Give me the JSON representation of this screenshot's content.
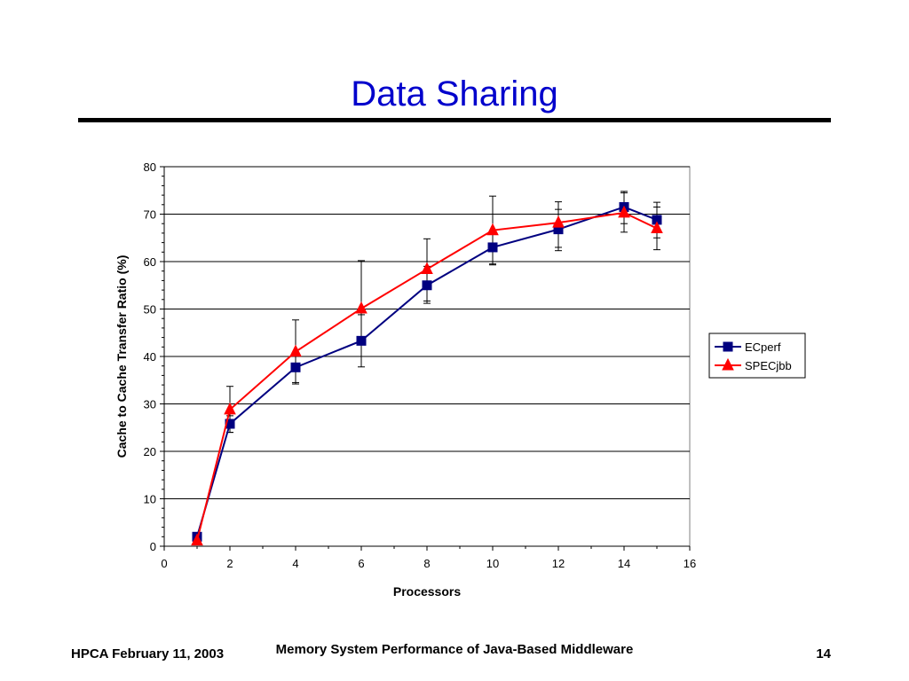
{
  "slide": {
    "title": "Data Sharing",
    "footer_left": "HPCA February 11, 2003",
    "footer_center": "Memory System Performance of Java-Based Middleware",
    "footer_right": "14"
  },
  "colors": {
    "title": "#0000cc",
    "ecperf": "#000080",
    "specjbb": "#ff0000"
  },
  "chart_data": {
    "type": "line",
    "title": "",
    "xlabel": "Processors",
    "ylabel": "Cache to Cache Transfer Ratio (%)",
    "xlim": [
      0,
      16
    ],
    "ylim": [
      0,
      80
    ],
    "x_ticks": [
      0,
      2,
      4,
      6,
      8,
      10,
      12,
      14,
      16
    ],
    "y_ticks": [
      0,
      10,
      20,
      30,
      40,
      50,
      60,
      70,
      80
    ],
    "grid": "horizontal major gridlines",
    "legend_position": "right",
    "series": [
      {
        "name": "ECperf",
        "marker": "square",
        "color": "#000080",
        "points": [
          {
            "x": 1,
            "y": 2,
            "err_low": null,
            "err_high": null
          },
          {
            "x": 2,
            "y": 25.8,
            "err_low": 24,
            "err_high": 27.5
          },
          {
            "x": 4,
            "y": 37.7,
            "err_low": 34.5,
            "err_high": 40.5
          },
          {
            "x": 6,
            "y": 43.3,
            "err_low": 37.8,
            "err_high": 48.8
          },
          {
            "x": 8,
            "y": 55,
            "err_low": 51.2,
            "err_high": 59
          },
          {
            "x": 10,
            "y": 63,
            "err_low": 59.5,
            "err_high": 66.5
          },
          {
            "x": 12,
            "y": 66.8,
            "err_low": 63,
            "err_high": 71
          },
          {
            "x": 14,
            "y": 71.5,
            "err_low": 68,
            "err_high": 74.5
          },
          {
            "x": 15,
            "y": 68.8,
            "err_low": 65,
            "err_high": 72.5
          }
        ]
      },
      {
        "name": "SPECjbb",
        "marker": "triangle",
        "color": "#ff0000",
        "points": [
          {
            "x": 1,
            "y": 1.2,
            "err_low": null,
            "err_high": null
          },
          {
            "x": 2,
            "y": 28.8,
            "err_low": 24,
            "err_high": 33.7
          },
          {
            "x": 4,
            "y": 41,
            "err_low": 34.2,
            "err_high": 47.7
          },
          {
            "x": 6,
            "y": 50.1,
            "err_low": 40,
            "err_high": 60.2
          },
          {
            "x": 8,
            "y": 58.4,
            "err_low": 51.7,
            "err_high": 64.8
          },
          {
            "x": 10,
            "y": 66.6,
            "err_low": 59.3,
            "err_high": 73.8
          },
          {
            "x": 12,
            "y": 68.2,
            "err_low": 62.3,
            "err_high": 72.6
          },
          {
            "x": 14,
            "y": 70.3,
            "err_low": 66.2,
            "err_high": 74.8
          },
          {
            "x": 15,
            "y": 67,
            "err_low": 62.5,
            "err_high": 71.5
          }
        ]
      }
    ]
  }
}
